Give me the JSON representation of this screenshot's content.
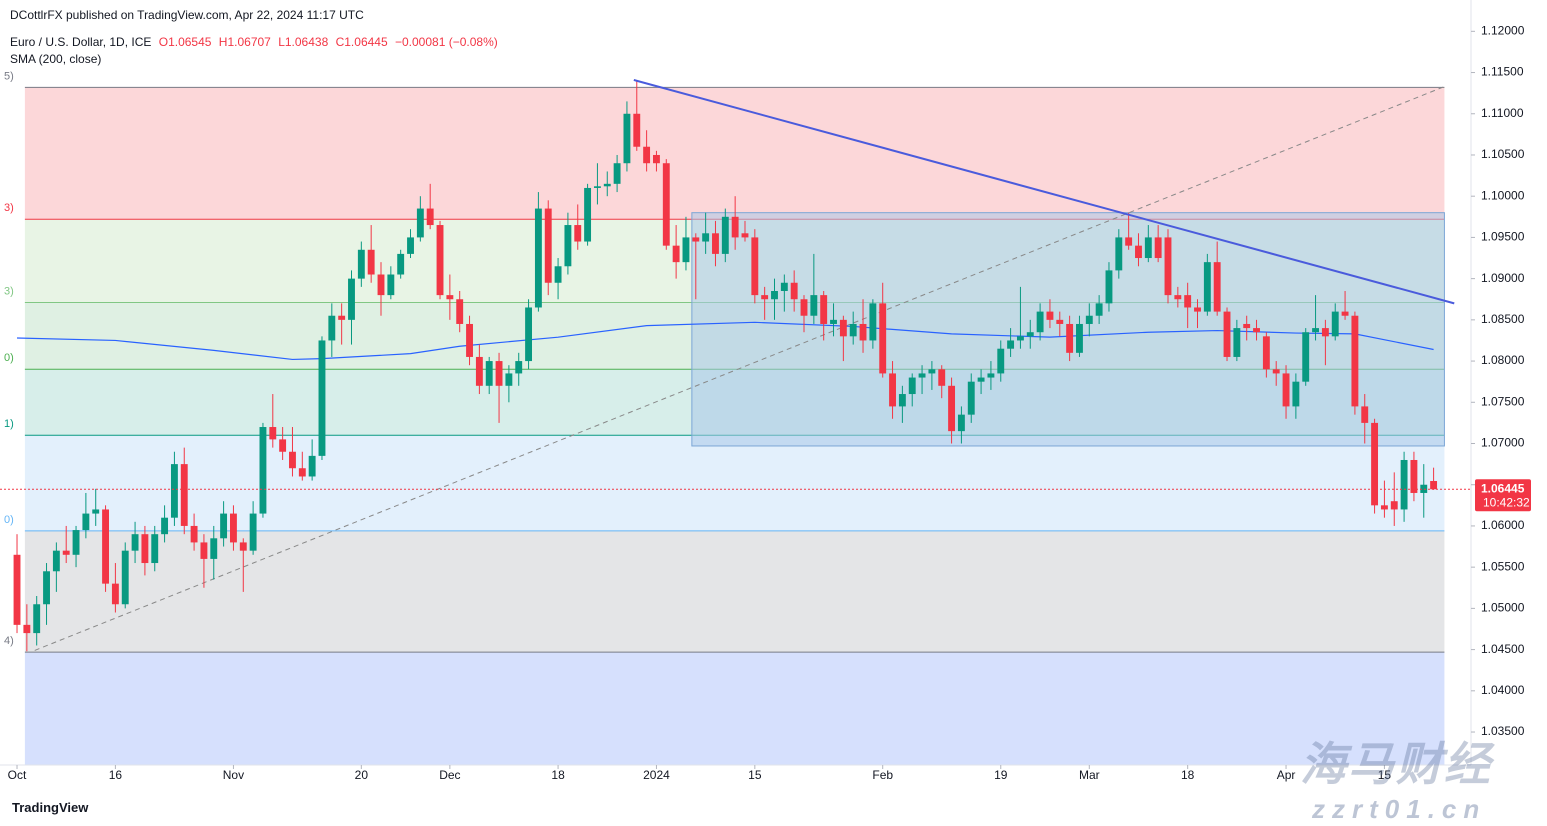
{
  "header": {
    "published": "DCottlrFX published on TradingView.com, Apr 22, 2024 11:17 UTC",
    "symbol": "Euro / U.S. Dollar, 1D, ICE",
    "ohlc_text": [
      "O1.06545",
      "H1.06707",
      "L1.06438",
      "C1.06445",
      "−0.00081 (−0.08%)"
    ],
    "indicator": "SMA (200, close)"
  },
  "footer": {
    "brand": "TradingView",
    "watermark_cn": "海马财经",
    "watermark_url": "zzrt01.cn"
  },
  "chart_data": {
    "type": "candlestick",
    "up_color": "#089981",
    "down_color": "#f23645",
    "xlim": [
      -1.73,
      147.7
    ],
    "ylim": [
      1.031,
      1.1238
    ],
    "xticks": [
      {
        "value": 0,
        "label": "Oct"
      },
      {
        "value": 10,
        "label": "16"
      },
      {
        "value": 22,
        "label": "Nov"
      },
      {
        "value": 35,
        "label": "20"
      },
      {
        "value": 44,
        "label": "Dec"
      },
      {
        "value": 55,
        "label": "18"
      },
      {
        "value": 65,
        "label": "2024"
      },
      {
        "value": 75,
        "label": "15"
      },
      {
        "value": 88,
        "label": "Feb"
      },
      {
        "value": 100,
        "label": "19"
      },
      {
        "value": 109,
        "label": "Mar"
      },
      {
        "value": 119,
        "label": "18"
      },
      {
        "value": 129,
        "label": "Apr"
      },
      {
        "value": 139,
        "label": "15"
      }
    ],
    "yticks": [
      {
        "value": 1.12,
        "label": "1.12000"
      },
      {
        "value": 1.115,
        "label": "1.11500"
      },
      {
        "value": 1.11,
        "label": "1.11000"
      },
      {
        "value": 1.105,
        "label": "1.10500"
      },
      {
        "value": 1.1,
        "label": "1.10000"
      },
      {
        "value": 1.095,
        "label": "1.09500"
      },
      {
        "value": 1.09,
        "label": "1.09000"
      },
      {
        "value": 1.085,
        "label": "1.08500"
      },
      {
        "value": 1.08,
        "label": "1.08000"
      },
      {
        "value": 1.075,
        "label": "1.07500"
      },
      {
        "value": 1.07,
        "label": "1.07000"
      },
      {
        "value": 1.065,
        "label": "1.06500"
      },
      {
        "value": 1.06,
        "label": "1.06000"
      },
      {
        "value": 1.055,
        "label": "1.05500"
      },
      {
        "value": 1.05,
        "label": "1.05000"
      },
      {
        "value": 1.045,
        "label": "1.04500"
      },
      {
        "value": 1.04,
        "label": "1.04000"
      },
      {
        "value": 1.035,
        "label": "1.03500"
      }
    ],
    "countdown": "10:42:32",
    "ohlc": [
      [
        1.0565,
        1.059,
        1.047,
        1.048
      ],
      [
        1.048,
        1.0505,
        1.0448,
        1.047
      ],
      [
        1.047,
        1.0515,
        1.0455,
        1.0505
      ],
      [
        1.0505,
        1.0555,
        1.048,
        1.0545
      ],
      [
        1.0545,
        1.058,
        1.052,
        1.057
      ],
      [
        1.057,
        1.06,
        1.0555,
        1.0565
      ],
      [
        1.0565,
        1.06,
        1.055,
        1.0595
      ],
      [
        1.0595,
        1.064,
        1.0585,
        1.0615
      ],
      [
        1.0615,
        1.0645,
        1.06,
        1.062
      ],
      [
        1.062,
        1.0625,
        1.052,
        1.053
      ],
      [
        1.053,
        1.0555,
        1.0495,
        1.0505
      ],
      [
        1.0505,
        1.058,
        1.05,
        1.057
      ],
      [
        1.057,
        1.0605,
        1.0555,
        1.059
      ],
      [
        1.059,
        1.06,
        1.054,
        1.0555
      ],
      [
        1.0555,
        1.06,
        1.0545,
        1.059
      ],
      [
        1.059,
        1.0625,
        1.058,
        1.061
      ],
      [
        1.061,
        1.069,
        1.06,
        1.0675
      ],
      [
        1.0675,
        1.0695,
        1.059,
        1.06
      ],
      [
        1.06,
        1.0615,
        1.057,
        1.058
      ],
      [
        1.058,
        1.059,
        1.0525,
        1.056
      ],
      [
        1.056,
        1.06,
        1.0535,
        1.0585
      ],
      [
        1.0585,
        1.063,
        1.0575,
        1.0615
      ],
      [
        1.0615,
        1.0625,
        1.057,
        1.058
      ],
      [
        1.058,
        1.0585,
        1.052,
        1.057
      ],
      [
        1.057,
        1.063,
        1.0565,
        1.0615
      ],
      [
        1.0615,
        1.0725,
        1.061,
        1.072
      ],
      [
        1.072,
        1.076,
        1.0695,
        1.0705
      ],
      [
        1.0705,
        1.072,
        1.068,
        1.069
      ],
      [
        1.069,
        1.072,
        1.066,
        1.067
      ],
      [
        1.067,
        1.069,
        1.0655,
        1.066
      ],
      [
        1.066,
        1.0705,
        1.0655,
        1.0685
      ],
      [
        1.0685,
        1.083,
        1.068,
        1.0825
      ],
      [
        1.0825,
        1.087,
        1.0805,
        1.0855
      ],
      [
        1.0855,
        1.087,
        1.082,
        1.085
      ],
      [
        1.085,
        1.091,
        1.082,
        1.09
      ],
      [
        1.09,
        1.0945,
        1.089,
        1.0935
      ],
      [
        1.0935,
        1.0965,
        1.0895,
        1.0905
      ],
      [
        1.0905,
        1.092,
        1.0855,
        1.088
      ],
      [
        1.088,
        1.0915,
        1.0875,
        1.0905
      ],
      [
        1.0905,
        1.0935,
        1.09,
        1.093
      ],
      [
        1.093,
        1.096,
        1.0925,
        1.095
      ],
      [
        1.095,
        1.1,
        1.0945,
        1.0985
      ],
      [
        1.0985,
        1.1015,
        1.096,
        1.0965
      ],
      [
        1.0965,
        1.097,
        1.0875,
        1.088
      ],
      [
        1.088,
        1.0905,
        1.085,
        1.0875
      ],
      [
        1.0875,
        1.0885,
        1.0835,
        1.0845
      ],
      [
        1.0845,
        1.0855,
        1.0795,
        1.0805
      ],
      [
        1.0805,
        1.082,
        1.076,
        1.077
      ],
      [
        1.077,
        1.0805,
        1.076,
        1.08
      ],
      [
        1.08,
        1.081,
        1.0725,
        1.077
      ],
      [
        1.077,
        1.0795,
        1.075,
        1.0785
      ],
      [
        1.0785,
        1.081,
        1.077,
        1.08
      ],
      [
        1.08,
        1.0875,
        1.079,
        1.0865
      ],
      [
        1.0865,
        1.1005,
        1.086,
        1.0985
      ],
      [
        1.0985,
        1.0995,
        1.088,
        1.0895
      ],
      [
        1.0895,
        1.0925,
        1.0875,
        1.0915
      ],
      [
        1.0915,
        1.098,
        1.0905,
        1.0965
      ],
      [
        1.0965,
        1.099,
        1.0935,
        1.0945
      ],
      [
        1.0945,
        1.1015,
        1.094,
        1.101
      ],
      [
        1.101,
        1.104,
        1.099,
        1.1012
      ],
      [
        1.1012,
        1.103,
        1.1,
        1.1015
      ],
      [
        1.1015,
        1.105,
        1.1005,
        1.104
      ],
      [
        1.104,
        1.1115,
        1.103,
        1.11
      ],
      [
        1.11,
        1.114,
        1.1055,
        1.106
      ],
      [
        1.106,
        1.108,
        1.103,
        1.104
      ],
      [
        1.105,
        1.1055,
        1.103,
        1.104
      ],
      [
        1.104,
        1.1045,
        1.0935,
        1.094
      ],
      [
        1.094,
        1.0965,
        1.09,
        1.092
      ],
      [
        1.092,
        1.0975,
        1.091,
        1.095
      ],
      [
        1.095,
        1.0955,
        1.0875,
        1.0945
      ],
      [
        1.0945,
        1.098,
        1.093,
        1.0955
      ],
      [
        1.0955,
        1.097,
        1.0915,
        1.093
      ],
      [
        1.093,
        1.0985,
        1.092,
        1.0975
      ],
      [
        1.0975,
        1.1,
        1.0935,
        1.095
      ],
      [
        1.0955,
        1.097,
        1.0945,
        1.095
      ],
      [
        1.095,
        1.096,
        1.087,
        1.088
      ],
      [
        1.088,
        1.089,
        1.085,
        1.0875
      ],
      [
        1.0875,
        1.09,
        1.085,
        1.0885
      ],
      [
        1.0885,
        1.0905,
        1.086,
        1.0895
      ],
      [
        1.0895,
        1.091,
        1.086,
        1.0875
      ],
      [
        1.0875,
        1.088,
        1.0835,
        1.0855
      ],
      [
        1.0855,
        1.093,
        1.0845,
        1.088
      ],
      [
        1.088,
        1.0885,
        1.0825,
        1.0845
      ],
      [
        1.0845,
        1.087,
        1.083,
        1.085
      ],
      [
        1.085,
        1.0855,
        1.08,
        1.083
      ],
      [
        1.083,
        1.086,
        1.082,
        1.0845
      ],
      [
        1.0845,
        1.0875,
        1.081,
        1.0825
      ],
      [
        1.0825,
        1.0875,
        1.0815,
        1.087
      ],
      [
        1.087,
        1.0895,
        1.078,
        1.0785
      ],
      [
        1.0785,
        1.08,
        1.073,
        1.0745
      ],
      [
        1.0745,
        1.077,
        1.0725,
        1.076
      ],
      [
        1.076,
        1.0785,
        1.0745,
        1.078
      ],
      [
        1.078,
        1.0795,
        1.076,
        1.0785
      ],
      [
        1.0785,
        1.08,
        1.0765,
        1.079
      ],
      [
        1.079,
        1.0795,
        1.0755,
        1.077
      ],
      [
        1.077,
        1.078,
        1.07,
        1.0715
      ],
      [
        1.0715,
        1.0745,
        1.07,
        1.0735
      ],
      [
        1.0735,
        1.0785,
        1.0725,
        1.0775
      ],
      [
        1.0775,
        1.079,
        1.076,
        1.078
      ],
      [
        1.078,
        1.08,
        1.0765,
        1.0785
      ],
      [
        1.0785,
        1.0825,
        1.0775,
        1.0815
      ],
      [
        1.0815,
        1.084,
        1.0805,
        1.0825
      ],
      [
        1.0825,
        1.089,
        1.0815,
        1.083
      ],
      [
        1.083,
        1.085,
        1.0815,
        1.0835
      ],
      [
        1.0835,
        1.087,
        1.0825,
        1.086
      ],
      [
        1.086,
        1.0875,
        1.084,
        1.085
      ],
      [
        1.085,
        1.086,
        1.083,
        1.0845
      ],
      [
        1.0845,
        1.0855,
        1.08,
        1.081
      ],
      [
        1.081,
        1.0855,
        1.0805,
        1.0845
      ],
      [
        1.0845,
        1.087,
        1.083,
        1.0855
      ],
      [
        1.0855,
        1.088,
        1.0845,
        1.087
      ],
      [
        1.087,
        1.092,
        1.086,
        1.091
      ],
      [
        1.091,
        1.096,
        1.09,
        1.095
      ],
      [
        1.095,
        1.098,
        1.0935,
        1.094
      ],
      [
        1.094,
        1.0955,
        1.0915,
        1.0925
      ],
      [
        1.0925,
        1.0965,
        1.092,
        1.095
      ],
      [
        1.095,
        1.0965,
        1.092,
        1.0925
      ],
      [
        1.095,
        1.096,
        1.087,
        1.088
      ],
      [
        1.088,
        1.089,
        1.0865,
        1.0875
      ],
      [
        1.088,
        1.0895,
        1.084,
        1.0865
      ],
      [
        1.0865,
        1.0875,
        1.084,
        1.086
      ],
      [
        1.086,
        1.093,
        1.0855,
        1.092
      ],
      [
        1.092,
        1.0945,
        1.0855,
        1.086
      ],
      [
        1.086,
        1.0865,
        1.08,
        1.0805
      ],
      [
        1.0805,
        1.085,
        1.08,
        1.084
      ],
      [
        1.0845,
        1.0855,
        1.0825,
        1.084
      ],
      [
        1.084,
        1.085,
        1.0825,
        1.0835
      ],
      [
        1.083,
        1.0835,
        1.078,
        1.079
      ],
      [
        1.079,
        1.08,
        1.077,
        1.0785
      ],
      [
        1.0785,
        1.0795,
        1.073,
        1.0745
      ],
      [
        1.0745,
        1.0785,
        1.073,
        1.0775
      ],
      [
        1.0775,
        1.084,
        1.077,
        1.0835
      ],
      [
        1.0835,
        1.088,
        1.0825,
        1.084
      ],
      [
        1.084,
        1.085,
        1.0795,
        1.083
      ],
      [
        1.083,
        1.087,
        1.0825,
        1.086
      ],
      [
        1.086,
        1.0885,
        1.085,
        1.0855
      ],
      [
        1.0855,
        1.086,
        1.0735,
        1.0745
      ],
      [
        1.0745,
        1.076,
        1.07,
        1.0725
      ],
      [
        1.0725,
        1.073,
        1.0615,
        1.0625
      ],
      [
        1.0625,
        1.0655,
        1.061,
        1.062
      ],
      [
        1.063,
        1.0665,
        1.06,
        1.062
      ],
      [
        1.062,
        1.069,
        1.0605,
        1.068
      ],
      [
        1.068,
        1.069,
        1.063,
        1.064
      ],
      [
        1.064,
        1.0675,
        1.061,
        1.065
      ],
      [
        1.06545,
        1.06707,
        1.06438,
        1.06445
      ]
    ],
    "sma": {
      "name": "SMA (200, close)",
      "color": "#2962ff",
      "x": [
        0,
        10,
        20,
        28,
        31,
        40,
        45,
        55,
        64,
        75,
        85,
        95,
        105,
        115,
        122,
        130,
        136,
        144
      ],
      "values": [
        1.0828,
        1.0825,
        1.0813,
        1.0802,
        1.0803,
        1.0809,
        1.0818,
        1.0829,
        1.0843,
        1.0847,
        1.0842,
        1.0833,
        1.0829,
        1.0835,
        1.0837,
        1.0834,
        1.0833,
        1.0814
      ]
    },
    "fib": {
      "x": [
        0.8,
        145.1
      ],
      "levels": [
        1.1132,
        1.0972,
        1.0871,
        1.079,
        1.071,
        1.0594,
        1.0447
      ],
      "labels": [
        "5)",
        "3)",
        "3)",
        "0)",
        "1)",
        "0)",
        "4)"
      ],
      "line_colors": [
        "#787b86",
        "#f23645",
        "#81c784",
        "#4caf50",
        "#089981",
        "#64b5f6",
        "#787b86"
      ],
      "band_colors": [
        "#fcd7d9",
        "#e8f4e5",
        "#dff0e3",
        "#d7eeea",
        "#e3f0fc",
        "#e4e5e7",
        "#d6e0fd"
      ]
    },
    "trend_line": {
      "x": [
        62.7,
        146.1
      ],
      "y": [
        1.1141,
        1.087
      ],
      "color": "#4a5bdc"
    },
    "dashed_line": {
      "x": [
        1.8,
        145.1
      ],
      "y": [
        1.0449,
        1.1133
      ],
      "color": "#888888"
    },
    "rectangle": {
      "x": [
        68.6,
        145.1
      ],
      "y": [
        1.098,
        1.0697
      ],
      "fill": "#a9c8e8",
      "stroke": "#7ba6d6"
    }
  }
}
